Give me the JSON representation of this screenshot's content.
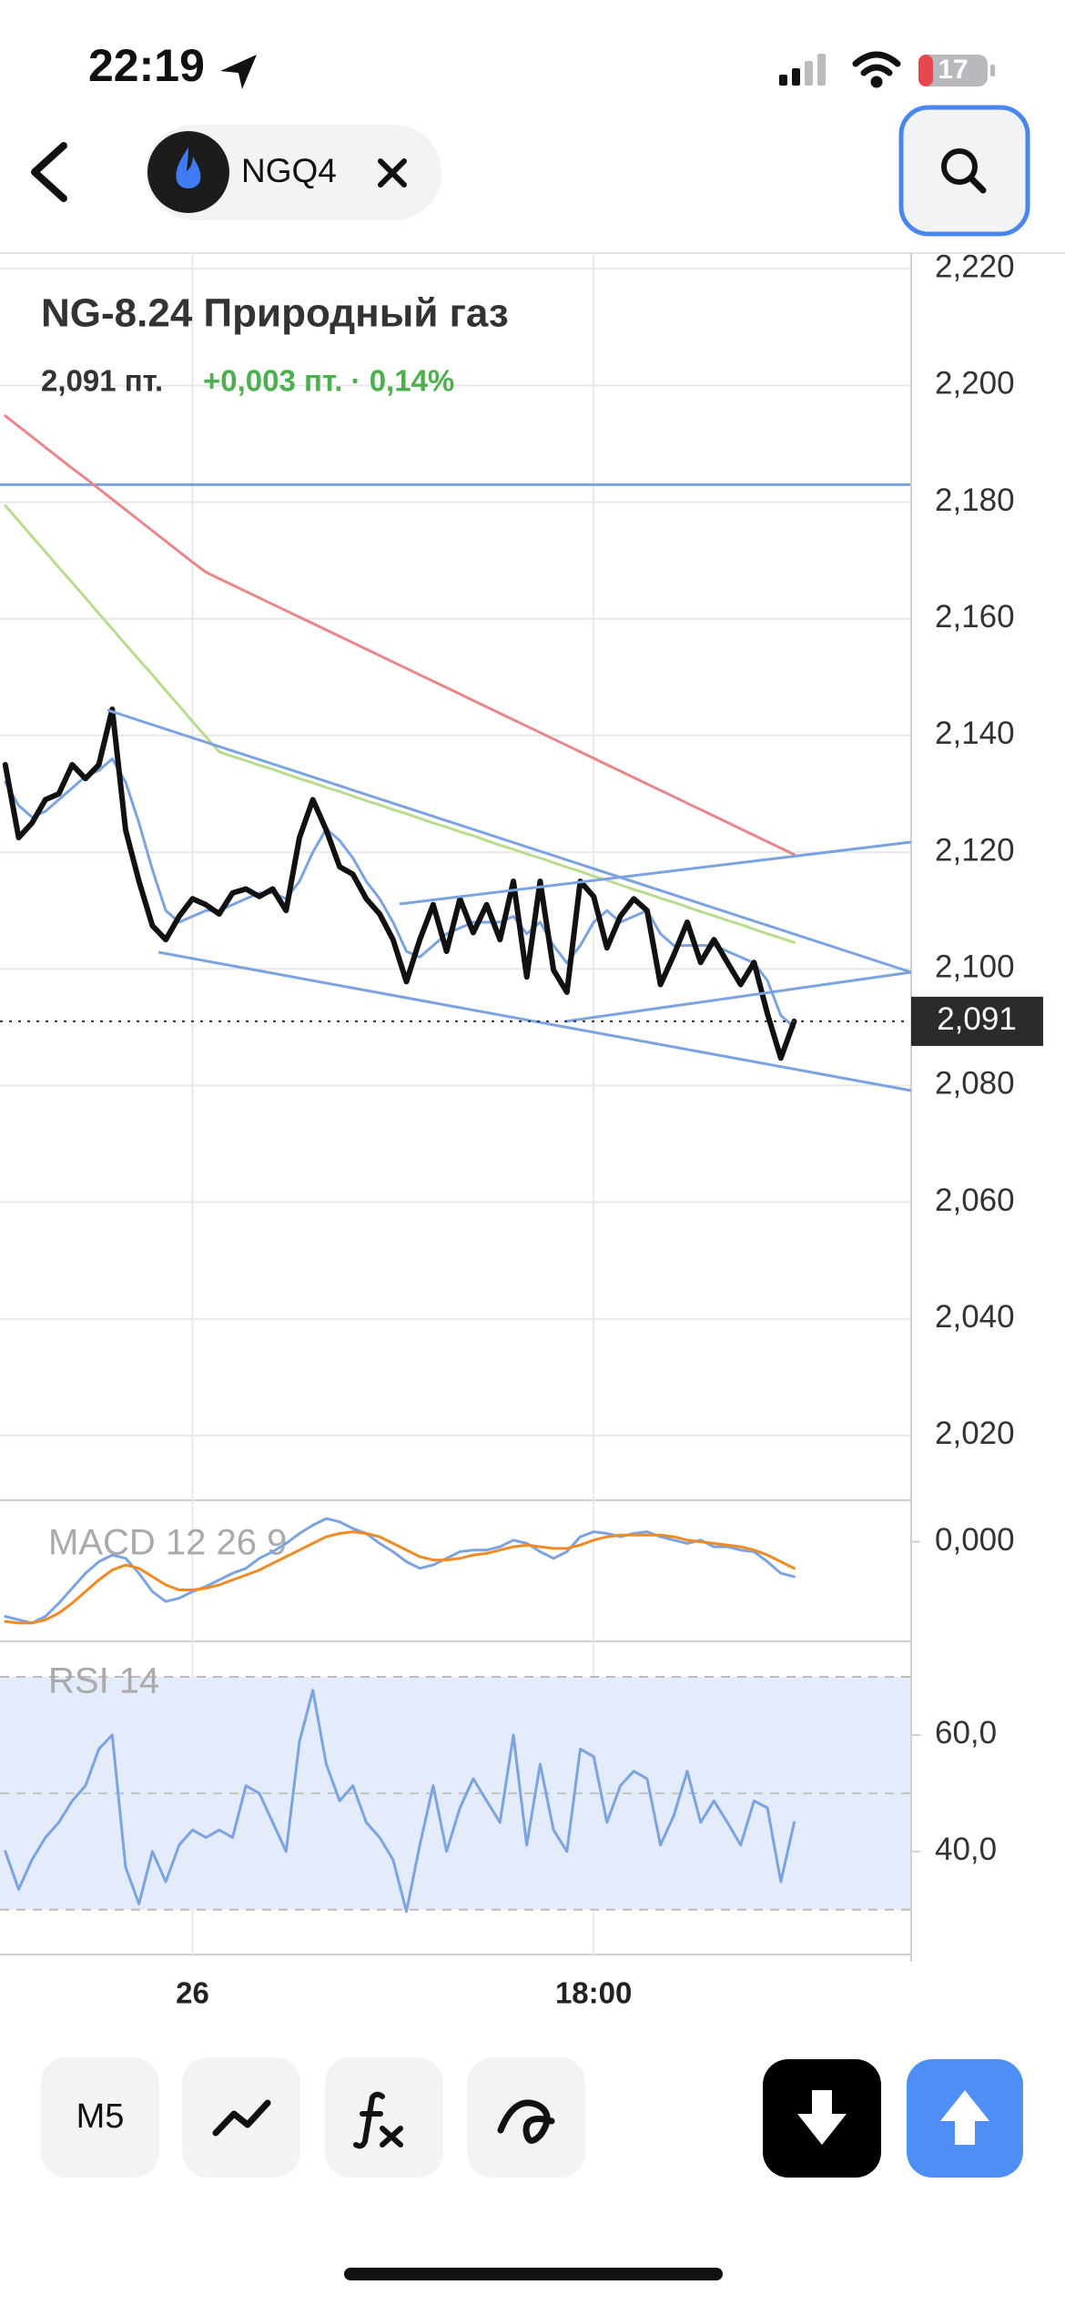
{
  "status_bar": {
    "time": "22:19",
    "battery": "17"
  },
  "header": {
    "ticker": "NGQ4"
  },
  "toolbar": {
    "interval": "M5"
  },
  "chart_data": [
    {
      "type": "line",
      "title": "NG-8.24 Природный газ",
      "last_price": "2,091 пт.",
      "change": "+0,003 пт. · 0,14%",
      "categories": [
        null,
        null,
        null,
        null,
        null,
        null,
        null,
        null,
        null,
        null,
        null,
        null,
        null,
        null,
        "26",
        null,
        null,
        null,
        null,
        null,
        null,
        null,
        null,
        null,
        null,
        null,
        null,
        null,
        null,
        null,
        null,
        null,
        null,
        null,
        null,
        null,
        null,
        null,
        null,
        null,
        null,
        null,
        null,
        null,
        "18:00",
        null,
        null,
        null,
        null,
        null,
        null,
        null,
        null,
        null,
        null,
        null,
        null,
        null,
        null,
        null
      ],
      "series": [
        {
          "color": "#e8868c",
          "values": [
            2.1948,
            2.193,
            2.1912,
            2.1894,
            2.1876,
            2.1858,
            2.1841,
            2.1823,
            2.1805,
            2.1787,
            2.1769,
            2.1751,
            2.1733,
            2.1715,
            2.1697,
            2.168,
            2.1669,
            2.1658,
            2.1647,
            2.1636,
            2.1625,
            2.1614,
            2.1603,
            2.1592,
            2.1581,
            2.157,
            2.1559,
            2.1548,
            2.1537,
            2.1526,
            2.1515,
            2.1504,
            2.1493,
            2.1482,
            2.1471,
            2.146,
            2.1449,
            2.1438,
            2.1427,
            2.1416,
            2.1405,
            2.1394,
            2.1383,
            2.1372,
            2.1361,
            2.135,
            2.1339,
            2.1328,
            2.1317,
            2.1306,
            2.1295,
            2.1284,
            2.1273,
            2.1262,
            2.1251,
            2.124,
            2.1229,
            2.1218,
            2.1207,
            2.1196
          ]
        },
        {
          "color": "#b8dc8e",
          "values": [
            2.1794,
            2.1768,
            2.1741,
            2.1715,
            2.1688,
            2.1662,
            2.1636,
            2.1609,
            2.1583,
            2.1556,
            2.153,
            2.1504,
            2.1477,
            2.1451,
            2.1424,
            2.1398,
            2.1372,
            2.1364,
            2.1357,
            2.1349,
            2.1342,
            2.1334,
            2.1326,
            2.1319,
            2.1311,
            2.1304,
            2.1296,
            2.1288,
            2.1281,
            2.1273,
            2.1266,
            2.1258,
            2.125,
            2.1243,
            2.1235,
            2.1228,
            2.122,
            2.1212,
            2.1205,
            2.1197,
            2.119,
            2.1182,
            2.1174,
            2.1167,
            2.1159,
            2.1152,
            2.1144,
            2.1136,
            2.1129,
            2.1121,
            2.1114,
            2.1106,
            2.1098,
            2.1091,
            2.1083,
            2.1076,
            2.1068,
            2.106,
            2.1053,
            2.1045
          ]
        },
        {
          "color": "#7ba3e0",
          "values": [
            2.132,
            2.128,
            2.126,
            2.127,
            2.129,
            2.131,
            2.133,
            2.134,
            2.136,
            2.132,
            2.125,
            2.117,
            2.11,
            2.108,
            2.109,
            2.11,
            2.11,
            2.111,
            2.112,
            2.113,
            2.113,
            2.112,
            2.115,
            2.12,
            2.124,
            2.122,
            2.119,
            2.115,
            2.112,
            2.108,
            2.103,
            2.102,
            2.104,
            2.106,
            2.107,
            2.108,
            2.108,
            2.108,
            2.109,
            2.106,
            2.108,
            2.104,
            2.101,
            2.104,
            2.108,
            2.11,
            2.108,
            2.109,
            2.11,
            2.106,
            2.104,
            2.104,
            2.104,
            2.104,
            2.103,
            2.102,
            2.101,
            2.098,
            2.092,
            2.09
          ]
        },
        {
          "color": "#111111",
          "values": [
            2.135,
            2.1225,
            2.125,
            2.129,
            2.13,
            2.135,
            2.1326,
            2.135,
            2.1445,
            2.1238,
            2.115,
            2.1074,
            2.105,
            2.109,
            2.112,
            2.111,
            2.1094,
            2.113,
            2.1137,
            2.1124,
            2.1137,
            2.11,
            2.1225,
            2.129,
            2.1238,
            2.1175,
            2.1162,
            2.112,
            2.1094,
            2.105,
            2.0978,
            2.105,
            2.111,
            2.103,
            2.112,
            2.1062,
            2.111,
            2.105,
            2.115,
            2.0986,
            2.115,
            2.0998,
            2.096,
            2.115,
            2.1124,
            2.1036,
            2.109,
            2.112,
            2.11,
            2.0973,
            2.1024,
            2.108,
            2.1011,
            2.105,
            2.1011,
            2.0973,
            2.1011,
            2.0923,
            2.0847,
            2.091
          ]
        }
      ],
      "ylim": [
        2.0089,
        2.2227
      ],
      "yticks": [
        {
          "value": 2.22,
          "label": "2,220"
        },
        {
          "value": 2.2,
          "label": "2,200"
        },
        {
          "value": 2.18,
          "label": "2,180"
        },
        {
          "value": 2.16,
          "label": "2,160"
        },
        {
          "value": 2.14,
          "label": "2,140"
        },
        {
          "value": 2.12,
          "label": "2,120"
        },
        {
          "value": 2.1,
          "label": "2,100"
        },
        {
          "value": 2.08,
          "label": "2,080"
        },
        {
          "value": 2.06,
          "label": "2,060"
        },
        {
          "value": 2.04,
          "label": "2,040"
        },
        {
          "value": 2.02,
          "label": "2,020"
        }
      ],
      "grid": true,
      "hlines": [
        2.183
      ],
      "current": {
        "value": 2.091,
        "label": "2,091"
      }
    },
    {
      "type": "line",
      "title": "MACD 12 26 9",
      "series": [
        {
          "color": "#7ba3e0",
          "values": [
            -0.0045,
            -0.0047,
            -0.0049,
            -0.0045,
            -0.0037,
            -0.0028,
            -0.0019,
            -0.0012,
            -0.0008,
            -0.001,
            -0.0019,
            -0.003,
            -0.0036,
            -0.0034,
            -0.003,
            -0.0027,
            -0.0023,
            -0.0019,
            -0.0016,
            -0.001,
            -0.0006,
            -0.0001,
            0.0005,
            0.001,
            0.0014,
            0.0012,
            0.0008,
            0.0005,
            -0.0001,
            -0.0006,
            -0.0012,
            -0.0016,
            -0.0014,
            -0.001,
            -0.0006,
            -0.0005,
            -0.0005,
            -0.0003,
            0.0001,
            -0.0001,
            -0.0006,
            -0.001,
            -0.0006,
            0.0003,
            0.0006,
            0.0005,
            0.0003,
            0.0005,
            0.0006,
            0.0003,
            0.0001,
            -0.0001,
            0.0001,
            -0.0003,
            -0.0003,
            -0.0005,
            -0.0006,
            -0.0012,
            -0.0019,
            -0.0021
          ]
        },
        {
          "color": "#f08a24",
          "values": [
            -0.0048,
            -0.0049,
            -0.0049,
            -0.0047,
            -0.0043,
            -0.0037,
            -0.003,
            -0.0023,
            -0.0017,
            -0.0014,
            -0.0016,
            -0.0021,
            -0.0026,
            -0.0029,
            -0.0029,
            -0.0028,
            -0.0026,
            -0.0023,
            -0.002,
            -0.0017,
            -0.0013,
            -0.0009,
            -0.0005,
            -0.0001,
            0.0003,
            0.0005,
            0.0006,
            0.0005,
            0.0003,
            -0.0001,
            -0.0005,
            -0.0009,
            -0.0011,
            -0.0011,
            -0.001,
            -0.0008,
            -0.0007,
            -0.0005,
            -0.0003,
            -0.0002,
            -0.0003,
            -0.0004,
            -0.0004,
            -0.0002,
            0.0001,
            0.0003,
            0.0004,
            0.0004,
            0.0004,
            0.0004,
            0.0003,
            0.0001,
            0.0,
            -0.0001,
            -0.0002,
            -0.0003,
            -0.0005,
            -0.0008,
            -0.0012,
            -0.0016
          ]
        }
      ],
      "ylim": [
        -0.006,
        0.0025
      ],
      "yticks": [
        {
          "value": 0,
          "label": "0,000"
        }
      ]
    },
    {
      "type": "line",
      "title": "RSI 14",
      "series": [
        {
          "color": "#7ba3e0",
          "values": [
            40,
            33.5,
            38.6,
            42.4,
            45,
            48.7,
            51.3,
            57.6,
            60,
            37.3,
            31,
            40,
            34.8,
            41.1,
            43.7,
            42.4,
            43.7,
            42.4,
            51.3,
            50,
            45,
            40,
            58.9,
            67.7,
            55,
            48.7,
            51.3,
            45,
            42.4,
            38.6,
            29.7,
            41.1,
            51.3,
            40,
            47.5,
            52.5,
            48.7,
            45,
            60,
            41.1,
            55,
            43.7,
            40,
            57.6,
            56.3,
            45,
            51.3,
            53.8,
            52.5,
            41.1,
            46.2,
            53.8,
            45,
            48.7,
            45,
            41.1,
            48.7,
            47.5,
            34.8,
            45
          ]
        }
      ],
      "ylim": [
        22.3,
        76.1
      ],
      "yticks": [
        {
          "value": 60,
          "label": "60,0"
        },
        {
          "value": 40,
          "label": "40,0"
        }
      ],
      "band": [
        30,
        70
      ],
      "midline": 50
    }
  ]
}
